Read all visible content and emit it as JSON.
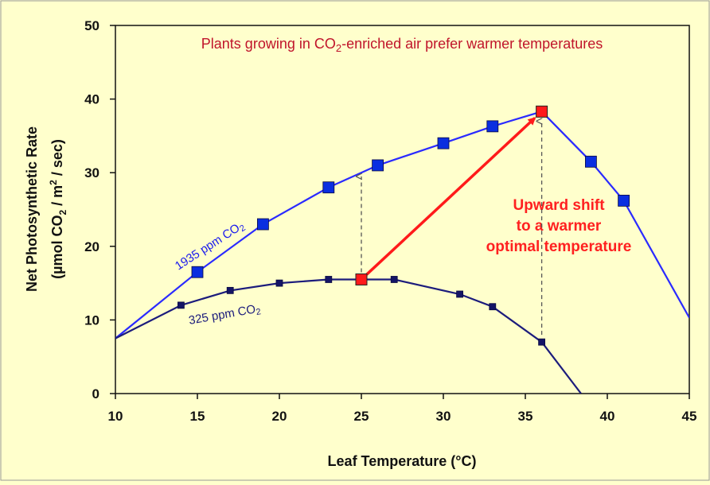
{
  "chart_data": {
    "type": "line",
    "title_parts": {
      "a": "Plants growing in CO",
      "sub": "2",
      "b": "-enriched air prefer warmer temperatures"
    },
    "xlabel": "Leaf  Temperature  (°C)",
    "ylabel_line1": "Net  Photosynthetic  Rate",
    "ylabel_line2_parts": {
      "a": "(µmol CO",
      "sub": "2",
      "b": " / m",
      "sup": "2",
      "c": " / sec)"
    },
    "xlim": [
      10,
      45
    ],
    "ylim": [
      0,
      50
    ],
    "x_ticks": [
      10,
      15,
      20,
      25,
      30,
      35,
      40,
      45
    ],
    "y_ticks": [
      0,
      10,
      20,
      30,
      40,
      50
    ],
    "series": [
      {
        "name": "1935 ppm CO2",
        "label_parts": {
          "a": "1935 ppm CO",
          "sub": "2"
        },
        "color": "#2a2aff",
        "marker_color": "#0a2ee0",
        "line": [
          [
            10,
            7.5
          ],
          [
            15,
            16.5
          ],
          [
            19,
            23
          ],
          [
            23,
            28
          ],
          [
            26,
            31
          ],
          [
            30,
            34
          ],
          [
            33,
            36.3
          ],
          [
            36,
            38.3
          ],
          [
            39,
            31.5
          ],
          [
            41,
            26.2
          ],
          [
            45,
            10.3
          ]
        ],
        "markers": [
          [
            15,
            16.5
          ],
          [
            19,
            23
          ],
          [
            23,
            28
          ],
          [
            26,
            31
          ],
          [
            30,
            34
          ],
          [
            33,
            36.3
          ],
          [
            39,
            31.5
          ],
          [
            41,
            26.2
          ]
        ],
        "optimum": [
          36,
          38.3
        ]
      },
      {
        "name": "325 ppm CO2",
        "label_parts": {
          "a": "325 ppm CO",
          "sub": "2"
        },
        "color": "#1c1c7c",
        "marker_color": "#141466",
        "line": [
          [
            10,
            7.5
          ],
          [
            14,
            12
          ],
          [
            17,
            14
          ],
          [
            20,
            15
          ],
          [
            23,
            15.5
          ],
          [
            25,
            15.5
          ],
          [
            27,
            15.5
          ],
          [
            31,
            13.5
          ],
          [
            33,
            11.8
          ],
          [
            36,
            7
          ],
          [
            38.4,
            0
          ]
        ],
        "markers": [
          [
            14,
            12
          ],
          [
            17,
            14
          ],
          [
            20,
            15
          ],
          [
            23,
            15.5
          ],
          [
            27,
            15.5
          ],
          [
            31,
            13.5
          ],
          [
            33,
            11.8
          ],
          [
            36,
            7
          ]
        ],
        "optimum": [
          25,
          15.5
        ]
      }
    ],
    "optimum_marker_color": "#ff1a1a",
    "dashed_arrows": [
      {
        "x": 25,
        "from_y": 15.5,
        "to_y": 29.5
      },
      {
        "x": 36,
        "from_y": 7,
        "to_y": 37
      }
    ],
    "shift_arrow": {
      "from": [
        25,
        15.5
      ],
      "to": [
        36,
        38.3
      ],
      "color": "#ff1a1a"
    },
    "annotation_lines": [
      "Upward shift",
      "to a warmer",
      "optimal temperature"
    ],
    "grid": false,
    "background": "#ffffcc"
  }
}
